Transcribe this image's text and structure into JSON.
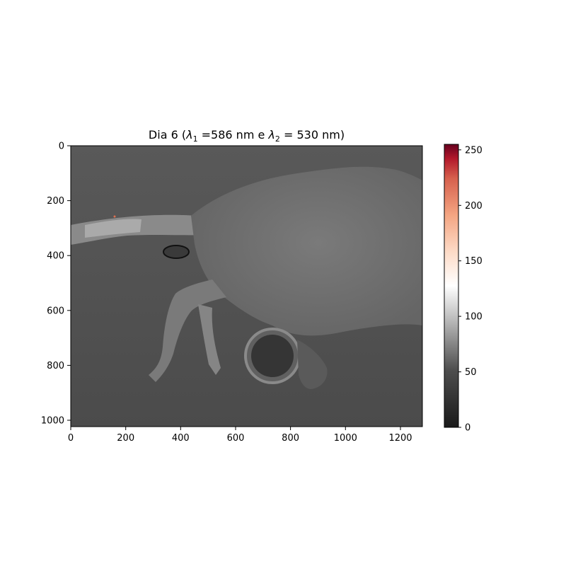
{
  "title": {
    "prefix": "Dia 6 (",
    "lambda_symbol": "λ",
    "l1_sub": "1",
    "l1_text": " =586 nm e ",
    "l2_sub": "2",
    "l2_text": " = 530 nm)"
  },
  "image": {
    "description_kind": "false-color thermal/multispectral image",
    "x_ticks": [
      "0",
      "200",
      "400",
      "600",
      "800",
      "1000",
      "1200"
    ],
    "y_ticks": [
      "0",
      "200",
      "400",
      "600",
      "800",
      "1000"
    ],
    "x_range": [
      0,
      1280
    ],
    "y_range": [
      0,
      1024
    ]
  },
  "colorbar": {
    "ticks": [
      "0",
      "50",
      "100",
      "150",
      "200",
      "250"
    ],
    "range": [
      0,
      255
    ],
    "colormap": "RdGy_r"
  },
  "colors": {
    "background_gray": "#4a4a4a",
    "cmap_low": "#1a1a1a",
    "cmap_mid": "#ffffff",
    "cmap_high": "#67001f"
  }
}
